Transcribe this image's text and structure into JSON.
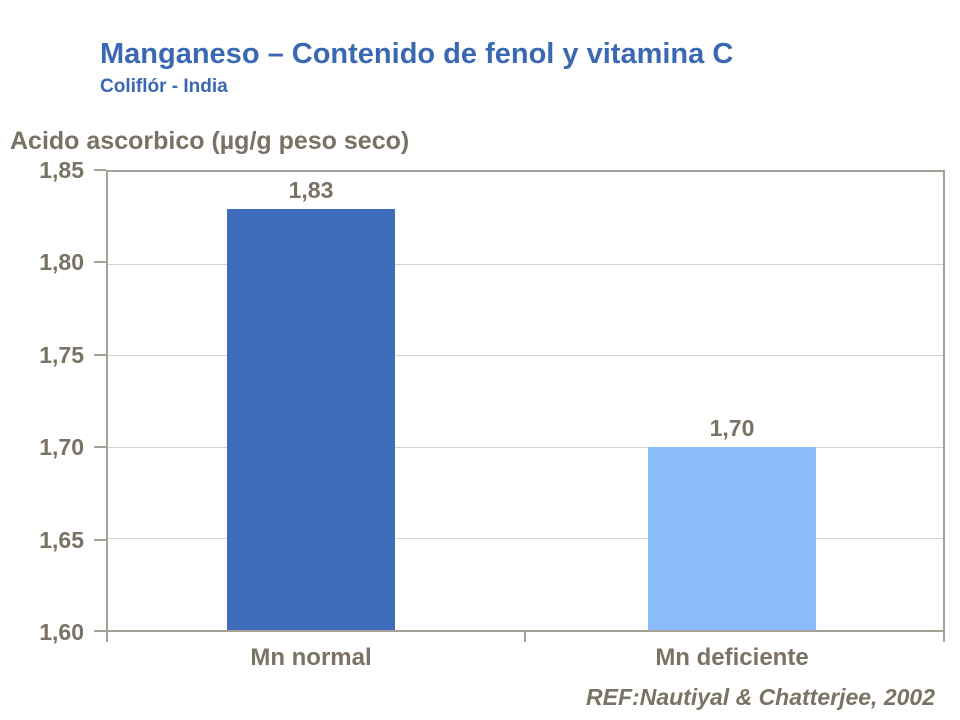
{
  "slide": {
    "title": "Manganeso – Contenido de fenol y vitamina C",
    "subtitle": "Coliflór - India",
    "reference": "REF:Nautiyal & Chatterjee, 2002"
  },
  "colors": {
    "title_blue": "#3A68B2",
    "label_brown": "#7A7265",
    "bar_dark_blue": "#3E6CBA",
    "bar_light_blue": "#8CBCFA",
    "plot_border_gray": "#A6A198",
    "gridline_gray": "#D4D3D0"
  },
  "chart_data": {
    "type": "bar",
    "title": "",
    "ylabel": "Acido ascorbico (µg/g peso seco)",
    "xlabel": "",
    "categories": [
      "Mn normal",
      "Mn deficiente"
    ],
    "values": [
      1.83,
      1.7
    ],
    "value_labels": [
      "1,83",
      "1,70"
    ],
    "bar_colors": [
      "#3E6CBA",
      "#8CBCFA"
    ],
    "ylim": [
      1.6,
      1.85
    ],
    "ytick_labels": [
      "1,85",
      "1,80",
      "1,75",
      "1,70",
      "1,65",
      "1,60"
    ],
    "grid": true,
    "legend": "none",
    "source": "REF:Nautiyal & Chatterjee, 2002"
  }
}
